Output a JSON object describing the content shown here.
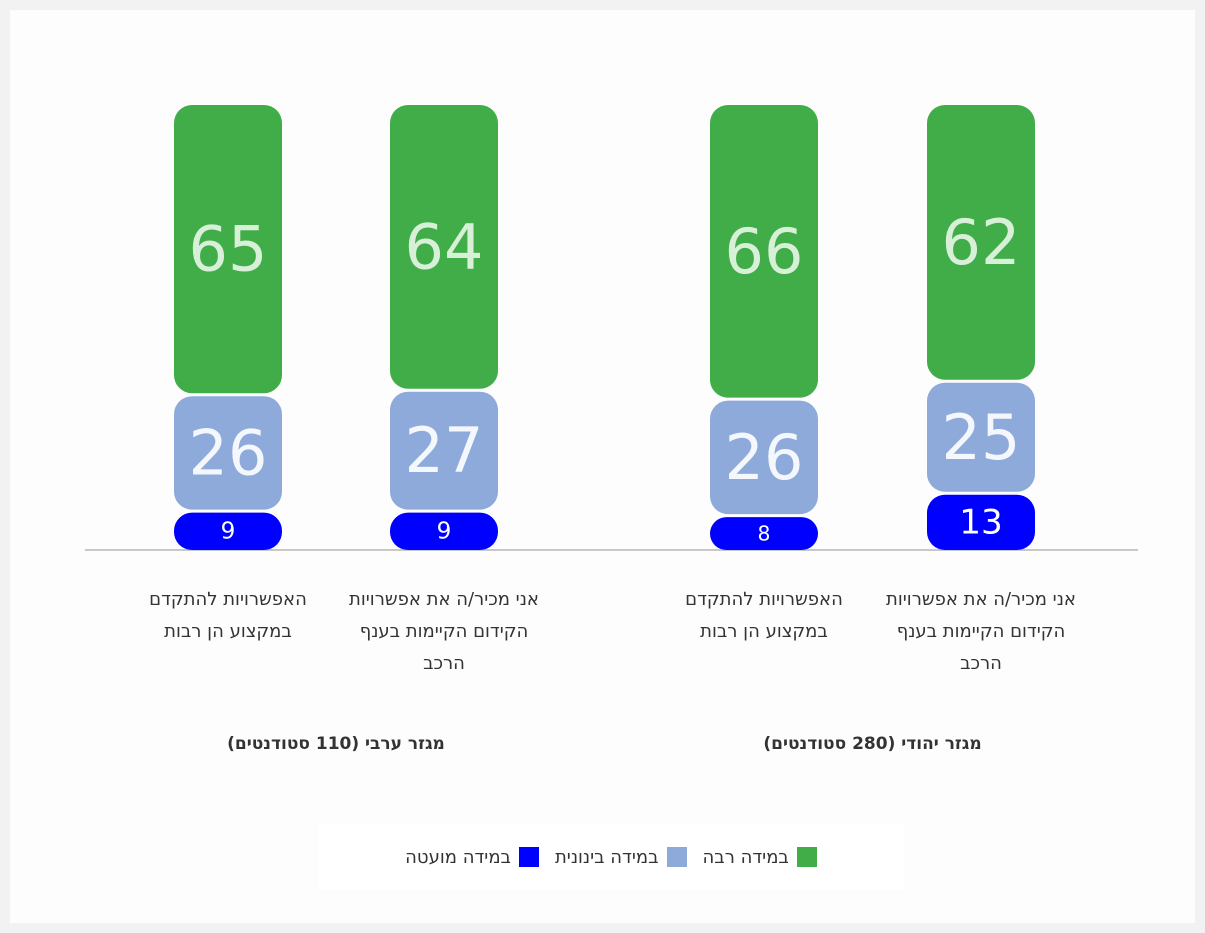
{
  "chart_data": {
    "type": "stacked_bar",
    "categories": [
      "אני מכיר/ה את אפשרויות הקידום הקיימות בענף הרכב",
      "האפשרויות להתקדם במקצוע הן רבות",
      "אני מכיר/ה את אפשרויות הקידום הקיימות בענף הרכב",
      "האפשרויות להתקדם במקצוע הן רבות"
    ],
    "groups": [
      "מגזר יהודי (280 סטודנטים)",
      "מגזר ערבי (110 סטודנטים)"
    ],
    "series": [
      {
        "name": "במידה רבה",
        "color": "#41ad49",
        "values": [
          62,
          66,
          64,
          65
        ]
      },
      {
        "name": "במידה בינונית",
        "color": "#8eaadb",
        "values": [
          25,
          26,
          27,
          26
        ]
      },
      {
        "name": "במידה מועטה",
        "color": "#0000ff",
        "values": [
          13,
          8,
          9,
          9
        ]
      }
    ],
    "ylim": [
      0,
      100
    ]
  }
}
